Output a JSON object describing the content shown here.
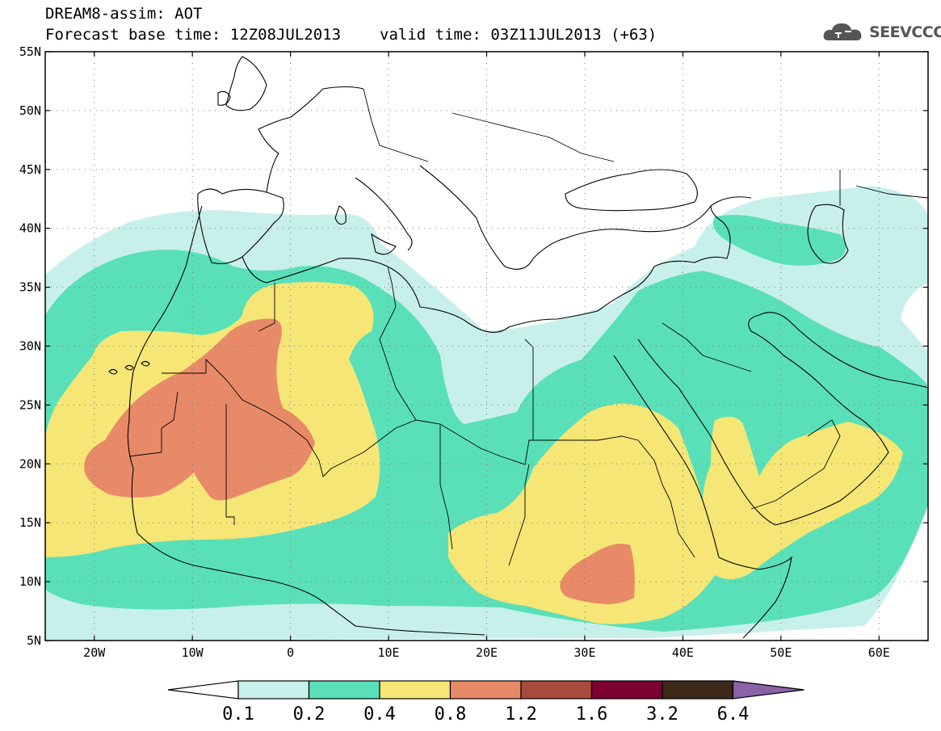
{
  "header": {
    "line1": "DREAM8-assim: AOT",
    "base_time": "Forecast base time: 12Z08JUL2013",
    "valid_time": "valid time: 03Z11JUL2013 (+63)"
  },
  "logo": {
    "icon": "cloud-logo-icon",
    "text": "SEEVCCC"
  },
  "map": {
    "lat_labels": [
      "55N",
      "50N",
      "45N",
      "40N",
      "35N",
      "30N",
      "25N",
      "20N",
      "15N",
      "10N",
      "5N"
    ],
    "lon_labels": [
      "20W",
      "10W",
      "0",
      "10E",
      "20E",
      "30E",
      "40E",
      "50E",
      "60E"
    ]
  },
  "colorbar": {
    "colors": [
      "#c8f0ea",
      "#5ae0b8",
      "#f5e676",
      "#e88a68",
      "#a84a3c",
      "#7c0030",
      "#3c2818",
      "#8a62a8"
    ],
    "labels": [
      "0.1",
      "0.2",
      "0.4",
      "0.8",
      "1.2",
      "1.6",
      "3.2",
      "6.4"
    ]
  }
}
